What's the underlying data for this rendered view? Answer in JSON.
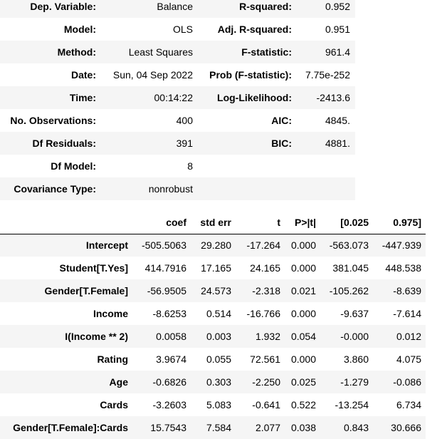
{
  "summary": {
    "rows": [
      {
        "label1": "Dep. Variable:",
        "value1": "Balance",
        "label2": "R-squared:",
        "value2": "0.952"
      },
      {
        "label1": "Model:",
        "value1": "OLS",
        "label2": "Adj. R-squared:",
        "value2": "0.951"
      },
      {
        "label1": "Method:",
        "value1": "Least Squares",
        "label2": "F-statistic:",
        "value2": "961.4"
      },
      {
        "label1": "Date:",
        "value1": "Sun, 04 Sep 2022",
        "label2": "Prob (F-statistic):",
        "value2": "7.75e-252"
      },
      {
        "label1": "Time:",
        "value1": "00:14:22",
        "label2": "Log-Likelihood:",
        "value2": "-2413.6"
      },
      {
        "label1": "No. Observations:",
        "value1": "400",
        "label2": "AIC:",
        "value2": "4845."
      },
      {
        "label1": "Df Residuals:",
        "value1": "391",
        "label2": "BIC:",
        "value2": "4881."
      },
      {
        "label1": "Df Model:",
        "value1": "8",
        "label2": "",
        "value2": ""
      },
      {
        "label1": "Covariance Type:",
        "value1": "nonrobust",
        "label2": "",
        "value2": ""
      }
    ]
  },
  "coefficients": {
    "headers": [
      "",
      "coef",
      "std err",
      "t",
      "P>|t|",
      "[0.025",
      "0.975]"
    ],
    "rows": [
      {
        "name": "Intercept",
        "coef": "-505.5063",
        "std_err": "29.280",
        "t": "-17.264",
        "p": "0.000",
        "lo": "-563.073",
        "hi": "-447.939"
      },
      {
        "name": "Student[T.Yes]",
        "coef": "414.7916",
        "std_err": "17.165",
        "t": "24.165",
        "p": "0.000",
        "lo": "381.045",
        "hi": "448.538"
      },
      {
        "name": "Gender[T.Female]",
        "coef": "-56.9505",
        "std_err": "24.573",
        "t": "-2.318",
        "p": "0.021",
        "lo": "-105.262",
        "hi": "-8.639"
      },
      {
        "name": "Income",
        "coef": "-8.6253",
        "std_err": "0.514",
        "t": "-16.766",
        "p": "0.000",
        "lo": "-9.637",
        "hi": "-7.614"
      },
      {
        "name": "I(Income ** 2)",
        "coef": "0.0058",
        "std_err": "0.003",
        "t": "1.932",
        "p": "0.054",
        "lo": "-0.000",
        "hi": "0.012"
      },
      {
        "name": "Rating",
        "coef": "3.9674",
        "std_err": "0.055",
        "t": "72.561",
        "p": "0.000",
        "lo": "3.860",
        "hi": "4.075"
      },
      {
        "name": "Age",
        "coef": "-0.6826",
        "std_err": "0.303",
        "t": "-2.250",
        "p": "0.025",
        "lo": "-1.279",
        "hi": "-0.086"
      },
      {
        "name": "Cards",
        "coef": "-3.2603",
        "std_err": "5.083",
        "t": "-0.641",
        "p": "0.522",
        "lo": "-13.254",
        "hi": "6.734"
      },
      {
        "name": "Gender[T.Female]:Cards",
        "coef": "15.7543",
        "std_err": "7.584",
        "t": "2.077",
        "p": "0.038",
        "lo": "0.843",
        "hi": "30.666"
      }
    ]
  }
}
